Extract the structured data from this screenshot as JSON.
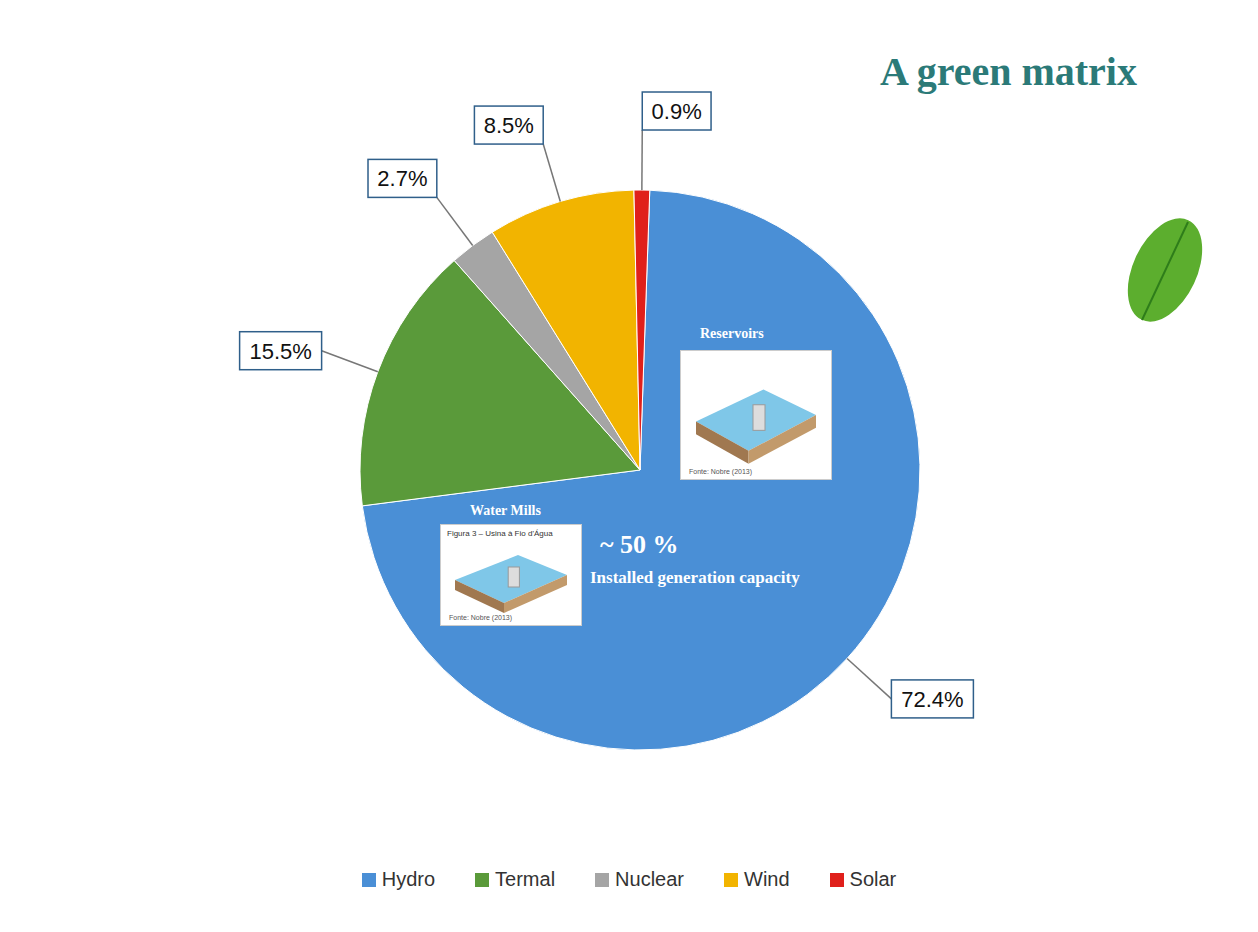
{
  "chart_data": {
    "type": "pie",
    "title": "A green matrix",
    "categories": [
      "Hydro",
      "Termal",
      "Nuclear",
      "Wind",
      "Solar"
    ],
    "values": [
      72.4,
      15.5,
      2.7,
      8.5,
      0.9
    ],
    "value_labels": [
      "72.4%",
      "15.5%",
      "2.7%",
      "8.5%",
      "0.9%"
    ],
    "colors": [
      "#4a8fd6",
      "#5a9a3a",
      "#a5a5a5",
      "#f2b400",
      "#e0201b"
    ],
    "data_labels": true,
    "legend": "bottom",
    "annotations": [
      "Reservoirs",
      "Water Mills",
      "~ 50 %",
      "Installed generation capacity",
      "Figura 3 – Usina à Fio d'Água",
      "Fonte: Nobre (2013)"
    ]
  }
}
